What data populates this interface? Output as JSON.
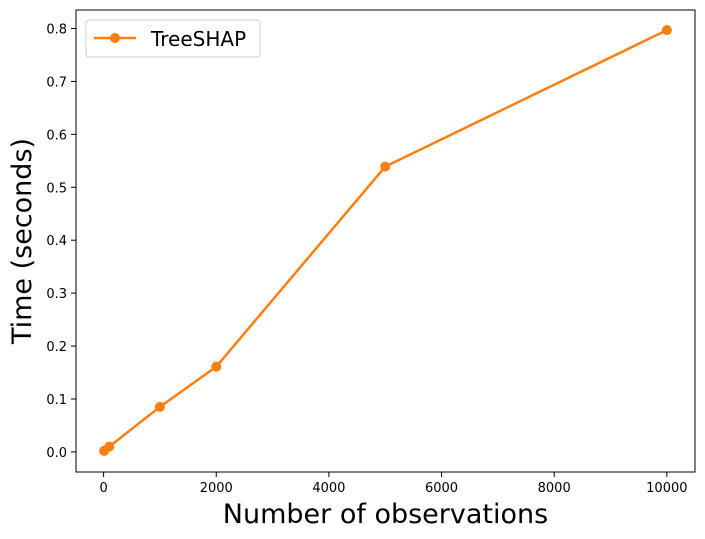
{
  "chart_data": {
    "type": "line",
    "title": "",
    "xlabel": "Number of observations",
    "ylabel": "Time (seconds)",
    "xlim": [
      -490,
      10500
    ],
    "ylim": [
      -0.038,
      0.835
    ],
    "xticks": [
      0,
      2000,
      4000,
      6000,
      8000,
      10000
    ],
    "xtick_labels": [
      "0",
      "2000",
      "4000",
      "6000",
      "8000",
      "10000"
    ],
    "yticks": [
      0,
      0.1,
      0.2,
      0.3,
      0.4,
      0.5,
      0.6,
      0.7,
      0.8
    ],
    "ytick_labels": [
      "0.0",
      "0.1",
      "0.2",
      "0.3",
      "0.4",
      "0.5",
      "0.6",
      "0.7",
      "0.8"
    ],
    "grid": false,
    "legend": "top-left",
    "series": [
      {
        "name": "TreeSHAP",
        "color": "#ff7f0e",
        "marker": "circle",
        "x": [
          10,
          100,
          1000,
          2000,
          5000,
          10000
        ],
        "y": [
          0.002,
          0.01,
          0.085,
          0.161,
          0.539,
          0.797
        ]
      }
    ]
  }
}
